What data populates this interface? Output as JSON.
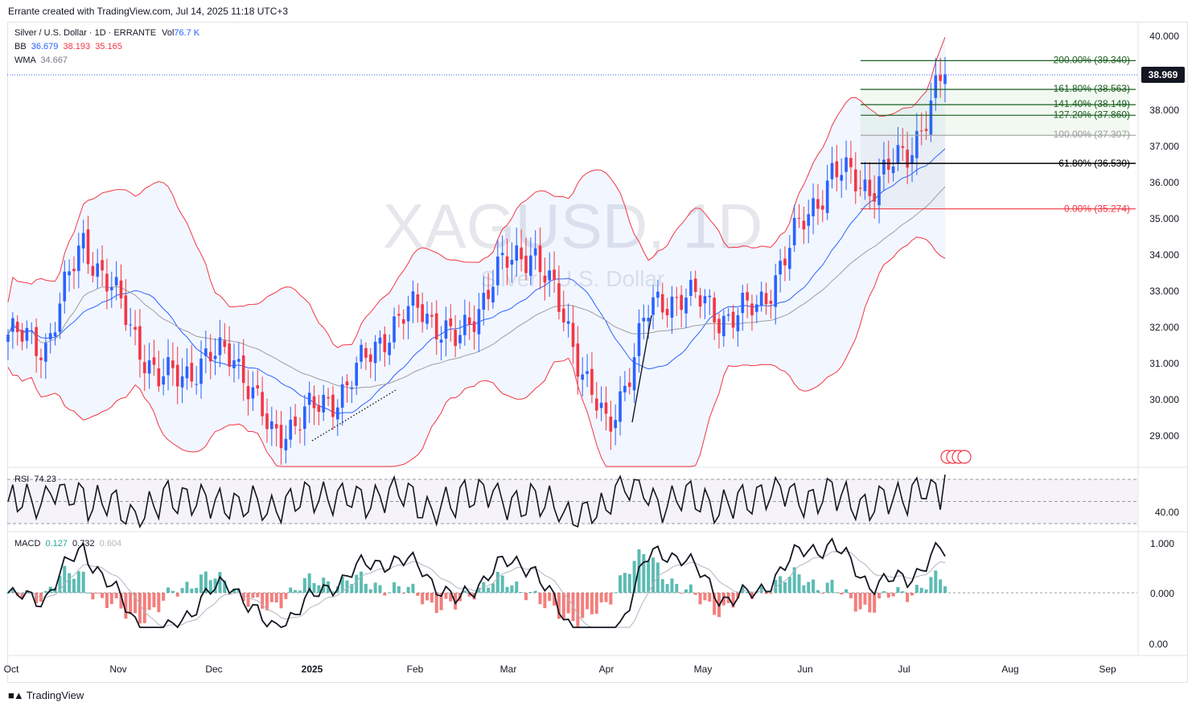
{
  "header": {
    "created": "Errante created with TradingView.com, Jul 14, 2025 11:18 UTC+3"
  },
  "legend": {
    "symbol": "Silver / U.S. Dollar · 1D · ERRANTE",
    "vol_label": "Vol",
    "vol_value": "76.7 K",
    "bb_label": "BB",
    "bb_basis": "36.679",
    "bb_upper": "38.193",
    "bb_lower": "35.165",
    "wma_label": "WMA",
    "wma_value": "34.667",
    "rsi_label": "RSI",
    "rsi_value": "74.23",
    "macd_label": "MACD",
    "macd_hist": "0.127",
    "macd_line": "0.732",
    "macd_signal": "0.604"
  },
  "watermark": {
    "main": "XAGUSD, 1D",
    "sub": "Silver / U.S. Dollar"
  },
  "last_price": "38.969",
  "fib_levels": [
    {
      "label": "200.00% (39.340)",
      "price": 39.34,
      "color": "#1b5e20"
    },
    {
      "label": "161.80% (38.563)",
      "price": 38.563,
      "color": "#1b5e20"
    },
    {
      "label": "141.40% (38.149)",
      "price": 38.149,
      "color": "#1b5e20"
    },
    {
      "label": "127.20% (37.860)",
      "price": 37.86,
      "color": "#1b5e20"
    },
    {
      "label": "100.00% (37.307)",
      "price": 37.307,
      "color": "#9e9e9e"
    },
    {
      "label": "61.80% (36.530)",
      "price": 36.53,
      "color": "#000000"
    },
    {
      "label": "0.00% (35.274)",
      "price": 35.274,
      "color": "#f23645"
    }
  ],
  "price_axis": [
    "40.000",
    "38.000",
    "37.000",
    "36.000",
    "35.000",
    "34.000",
    "33.000",
    "32.000",
    "31.000",
    "30.000",
    "29.000"
  ],
  "rsi_axis": [
    "40.00"
  ],
  "macd_axis": [
    "1.000",
    "0.000",
    "0.00"
  ],
  "time_axis": [
    {
      "label": "Oct",
      "bold": false
    },
    {
      "label": "Nov",
      "bold": false
    },
    {
      "label": "Dec",
      "bold": false
    },
    {
      "label": "2025",
      "bold": true
    },
    {
      "label": "Feb",
      "bold": false
    },
    {
      "label": "Mar",
      "bold": false
    },
    {
      "label": "Apr",
      "bold": false
    },
    {
      "label": "May",
      "bold": false
    },
    {
      "label": "Jun",
      "bold": false
    },
    {
      "label": "Jul",
      "bold": false
    },
    {
      "label": "Aug",
      "bold": false
    },
    {
      "label": "Sep",
      "bold": false
    }
  ],
  "footer": {
    "brand": "TradingView"
  },
  "colors": {
    "up": "#2962ff",
    "down": "#f23645",
    "bb_band": "#f23645",
    "bb_basis": "#2962ff",
    "wma": "#9e9e9e",
    "macd_pos": "#26a69a",
    "macd_neg": "#ef5350"
  },
  "chart_data": [
    {
      "type": "candlestick",
      "title": "Silver / U.S. Dollar · 1D · ERRANTE",
      "x_labels": [
        "Oct",
        "Nov",
        "Dec",
        "2025",
        "Feb",
        "Mar",
        "Apr",
        "May",
        "Jun",
        "Jul",
        "Aug",
        "Sep"
      ],
      "ylim": [
        28.5,
        40.0
      ],
      "series_close_approx": [
        {
          "x": "Oct",
          "y": 31.8
        },
        {
          "x": "mid-Oct",
          "y": 31.5
        },
        {
          "x": "late-Oct",
          "y": 34.4
        },
        {
          "x": "Nov",
          "y": 32.6
        },
        {
          "x": "mid-Nov",
          "y": 30.5
        },
        {
          "x": "Dec",
          "y": 30.9
        },
        {
          "x": "mid-Dec",
          "y": 31.4
        },
        {
          "x": "late-Dec",
          "y": 29.0
        },
        {
          "x": "2025",
          "y": 29.6
        },
        {
          "x": "mid-Jan",
          "y": 30.3
        },
        {
          "x": "Feb",
          "y": 31.8
        },
        {
          "x": "mid-Feb",
          "y": 32.6
        },
        {
          "x": "Mar",
          "y": 31.5
        },
        {
          "x": "mid-Mar",
          "y": 33.5
        },
        {
          "x": "late-Mar",
          "y": 34.2
        },
        {
          "x": "Apr",
          "y": 31.8
        },
        {
          "x": "early-Apr",
          "y": 29.0
        },
        {
          "x": "mid-Apr",
          "y": 32.3
        },
        {
          "x": "late-Apr",
          "y": 33.0
        },
        {
          "x": "May",
          "y": 32.3
        },
        {
          "x": "mid-May",
          "y": 32.5
        },
        {
          "x": "Jun",
          "y": 34.5
        },
        {
          "x": "mid-Jun",
          "y": 36.3
        },
        {
          "x": "late-Jun",
          "y": 35.9
        },
        {
          "x": "Jul",
          "y": 36.8
        },
        {
          "x": "Jul-14",
          "y": 38.969
        }
      ],
      "indicators": {
        "BB": {
          "basis": 36.679,
          "upper": 38.193,
          "lower": 35.165
        },
        "WMA": 34.667,
        "RSI": 74.23,
        "MACD": {
          "hist": 0.127,
          "macd": 0.732,
          "signal": 0.604
        }
      },
      "fibonacci": [
        {
          "level": "200.00%",
          "price": 39.34
        },
        {
          "level": "161.80%",
          "price": 38.563
        },
        {
          "level": "141.40%",
          "price": 38.149
        },
        {
          "level": "127.20%",
          "price": 37.86
        },
        {
          "level": "100.00%",
          "price": 37.307
        },
        {
          "level": "61.80%",
          "price": 36.53
        },
        {
          "level": "0.00%",
          "price": 35.274
        }
      ],
      "last_price": 38.969
    }
  ]
}
